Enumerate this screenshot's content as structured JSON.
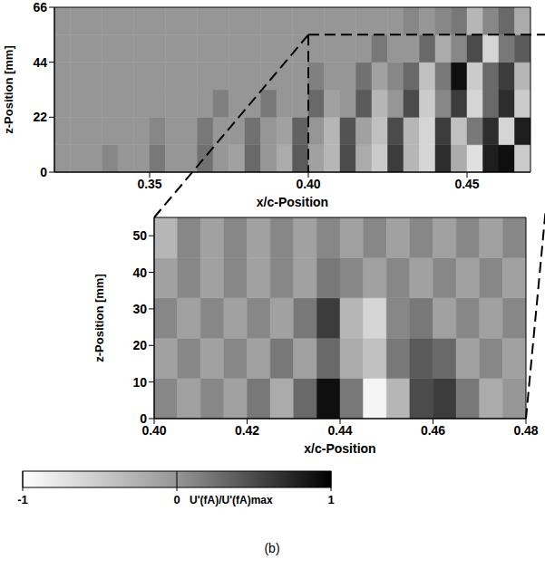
{
  "chart_data": [
    {
      "type": "heatmap",
      "x_label": "x/c-Position",
      "y_label": "z-Position [mm]",
      "xlim": [
        0.32,
        0.47
      ],
      "ylim": [
        0,
        66
      ],
      "xticks": [
        0.35,
        {
          "value": 0.4,
          "label": "0.40"
        },
        0.45
      ],
      "yticks": [
        0,
        22,
        44,
        66
      ],
      "cells": {
        "x": [
          0.3225,
          0.3275,
          0.3325,
          0.3375,
          0.3425,
          0.3475,
          0.3525,
          0.3575,
          0.3625,
          0.3675,
          0.3725,
          0.3775,
          0.3825,
          0.3875,
          0.3925,
          0.3975,
          0.4025,
          0.4075,
          0.4125,
          0.4175,
          0.4225,
          0.4275,
          0.4325,
          0.4375,
          0.4425,
          0.4475,
          0.4525,
          0.4575,
          0.4625,
          0.4675
        ],
        "y": [
          5.5,
          16.5,
          27.5,
          38.5,
          49.5,
          60.5
        ],
        "values": [
          [
            0,
            0,
            0,
            0.1,
            0,
            0,
            0.2,
            0,
            0,
            0.25,
            0,
            -0.1,
            0.3,
            0,
            -0.2,
            0.4,
            -0.1,
            -0.3,
            0.5,
            -0.2,
            -0.5,
            0.6,
            -0.3,
            -0.6,
            0.7,
            -0.2,
            -0.7,
            0.8,
            0.9,
            -0.5
          ],
          [
            0,
            0,
            0,
            0,
            0,
            0,
            0.1,
            0,
            0,
            0.2,
            0,
            0,
            0.25,
            0,
            -0.1,
            0.35,
            0,
            -0.3,
            0.45,
            -0.1,
            -0.4,
            0.5,
            -0.3,
            -0.6,
            0.6,
            -0.4,
            0.2,
            0.7,
            -0.6,
            0.8
          ],
          [
            0,
            0,
            0,
            0,
            0,
            0,
            0,
            0,
            0,
            0,
            0.15,
            0,
            0,
            0.2,
            0,
            0,
            0.3,
            -0.1,
            0,
            0.4,
            -0.3,
            0,
            0.5,
            -0.5,
            0.1,
            0.6,
            -0.6,
            0.3,
            0.7,
            -0.5
          ],
          [
            0,
            0,
            0,
            0,
            0,
            0,
            0,
            0,
            0,
            0,
            0,
            0,
            0,
            0,
            0,
            0,
            0.15,
            0,
            0,
            0.25,
            -0.1,
            0.1,
            0.3,
            -0.4,
            0.2,
            0.9,
            -0.5,
            0.3,
            0.6,
            -0.3
          ],
          [
            0,
            0,
            0,
            0,
            0,
            0,
            0,
            0,
            0,
            0,
            0,
            0,
            0,
            0,
            0,
            0,
            0,
            0,
            0,
            0,
            0.2,
            0,
            0,
            0.3,
            -0.2,
            0.1,
            0.5,
            -0.6,
            0.2,
            0.4
          ],
          [
            0,
            0,
            0,
            0,
            0,
            0,
            0,
            0,
            0,
            0,
            0,
            0,
            0,
            0,
            0,
            0,
            0,
            0,
            0,
            0,
            0,
            0,
            0.1,
            0,
            0.1,
            0.2,
            -0.3,
            0.1,
            0.3,
            -0.2
          ]
        ]
      }
    },
    {
      "type": "heatmap",
      "x_label": "x/c-Position",
      "y_label": "z-Position [mm]",
      "xlim": [
        0.4,
        0.48
      ],
      "ylim": [
        0,
        55
      ],
      "xticks": [
        {
          "value": 0.4,
          "label": "0.40"
        },
        0.42,
        0.44,
        0.46,
        0.48
      ],
      "yticks": [
        0,
        10,
        20,
        30,
        40,
        50
      ],
      "cells": {
        "x": [
          0.4025,
          0.4075,
          0.4125,
          0.4175,
          0.4225,
          0.4275,
          0.4325,
          0.4375,
          0.4425,
          0.4475,
          0.4525,
          0.4575,
          0.4625,
          0.4675,
          0.4725,
          0.4775
        ],
        "y": [
          5.5,
          16.5,
          27.5,
          38.5,
          49.5
        ],
        "values": [
          [
            0.1,
            -0.1,
            0.1,
            -0.1,
            0.2,
            -0.2,
            0.3,
            0.9,
            0.2,
            -0.9,
            -0.3,
            0.5,
            0.6,
            0.2,
            -0.2,
            0
          ],
          [
            -0.1,
            0.1,
            -0.1,
            0.1,
            -0.1,
            0.2,
            -0.1,
            0.3,
            -0.2,
            -0.4,
            0.2,
            0.4,
            0.3,
            -0.1,
            0.1,
            -0.1
          ],
          [
            0.1,
            -0.1,
            0.1,
            -0.1,
            0.1,
            -0.1,
            0.2,
            0.6,
            -0.3,
            -0.6,
            0.1,
            0.2,
            -0.1,
            0.1,
            -0.1,
            0.1
          ],
          [
            -0.1,
            0.1,
            -0.1,
            0.1,
            -0.1,
            0.1,
            -0.1,
            0.2,
            0.1,
            -0.1,
            0.1,
            -0.1,
            0.1,
            -0.1,
            0.1,
            -0.1
          ],
          [
            -0.3,
            0.1,
            -0.1,
            0.1,
            -0.1,
            0.1,
            -0.1,
            0.1,
            -0.1,
            0.1,
            -0.1,
            0.1,
            -0.1,
            0.1,
            -0.1,
            0.1
          ]
        ]
      }
    }
  ],
  "colorbar": {
    "range": [
      -1,
      1
    ],
    "ticks": [
      -1,
      0,
      1
    ],
    "label": "U'(fA)/U'(fA)max"
  },
  "caption": "(b)"
}
